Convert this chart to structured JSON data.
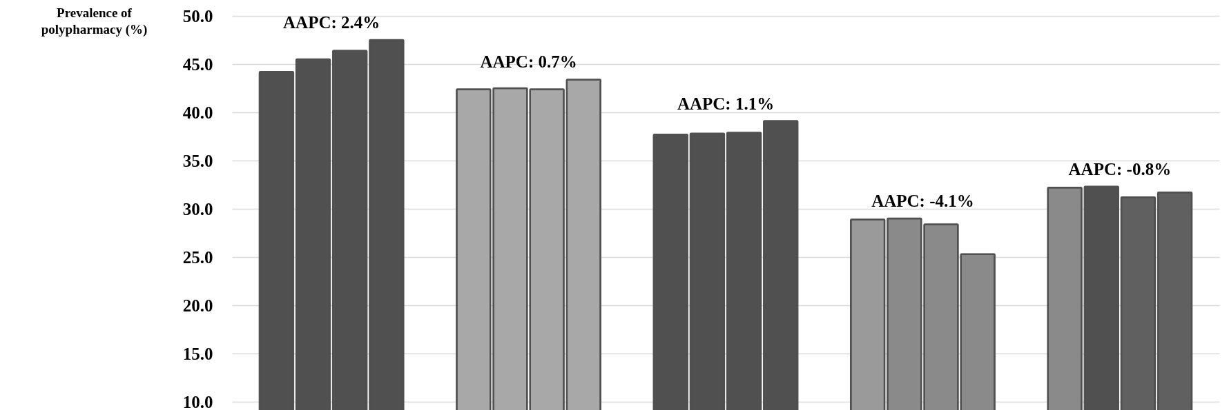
{
  "chart_data": {
    "type": "bar",
    "ylabel": "Prevalence of polypharmacy (%)",
    "categories": [
      null,
      null,
      null,
      null,
      null
    ],
    "series": [
      {
        "colors": [
          "#505050",
          "#a8a8a8",
          "#505050",
          "#9a9a9a",
          "#8a8a8a"
        ],
        "values": [
          44.2,
          42.4,
          37.7,
          28.9,
          32.2
        ]
      },
      {
        "colors": [
          "#505050",
          "#a8a8a8",
          "#505050",
          "#8a8a8a",
          "#505050"
        ],
        "values": [
          45.5,
          42.5,
          37.8,
          29.0,
          32.3
        ]
      },
      {
        "colors": [
          "#505050",
          "#a8a8a8",
          "#505050",
          "#8a8a8a",
          "#606060"
        ],
        "values": [
          46.4,
          42.4,
          37.9,
          28.4,
          31.2
        ]
      },
      {
        "colors": [
          "#505050",
          "#a8a8a8",
          "#505050",
          "#8a8a8a",
          "#606060"
        ],
        "values": [
          47.5,
          43.4,
          39.1,
          25.3,
          31.7
        ]
      }
    ],
    "annotations": [
      "AAPC: 2.4%",
      "AAPC: 0.7%",
      "AAPC: 1.1%",
      "AAPC: -4.1%",
      "AAPC: -0.8%"
    ],
    "ylim": [
      10,
      50
    ],
    "yticks": [
      {
        "value": 10,
        "label": "10.0"
      },
      {
        "value": 15,
        "label": "15.0"
      },
      {
        "value": 20,
        "label": "20.0"
      },
      {
        "value": 25,
        "label": "25.0"
      },
      {
        "value": 30,
        "label": "30.0"
      },
      {
        "value": 35,
        "label": "35.0"
      },
      {
        "value": 40,
        "label": "40.0"
      },
      {
        "value": 45,
        "label": "45.0"
      },
      {
        "value": 50,
        "label": "50.0"
      }
    ],
    "grid": "y",
    "tick_labels": "y"
  }
}
